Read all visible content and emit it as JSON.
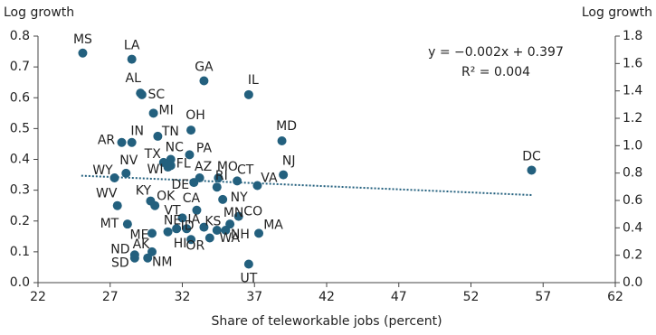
{
  "chart_data": {
    "type": "scatter",
    "y_label": "Log growth",
    "y2_label": "Log growth",
    "x_label": "Share of teleworkable jobs (percent)",
    "annotations": [
      "y = −0.002x + 0.397",
      "R² = 0.004"
    ],
    "color": "#23607e",
    "labels": [
      "MS",
      "LA",
      "AL",
      "SC",
      "GA",
      "IL",
      "MI",
      "OH",
      "TN",
      "AR",
      "IN",
      "MD",
      "NC",
      "PA",
      "TX",
      "FL",
      "WI",
      "NV",
      "WY",
      "DE",
      "AZ",
      "MO",
      "CT",
      "RI",
      "VA",
      "NJ",
      "DC",
      "KY",
      "OK",
      "WV",
      "CA",
      "VT",
      "NY",
      "CO",
      "MN",
      "MT",
      "ME",
      "NE",
      "IA",
      "KS",
      "NH",
      "MA",
      "AK",
      "ID",
      "HI",
      "OR",
      "WA",
      "ND",
      "SD",
      "NM",
      "UT"
    ],
    "x": [
      25.1,
      28.5,
      29.1,
      29.2,
      33.5,
      36.6,
      30.0,
      32.6,
      30.3,
      27.8,
      28.5,
      38.9,
      31.2,
      32.5,
      30.7,
      31.2,
      31.0,
      28.1,
      27.3,
      32.8,
      33.2,
      34.5,
      35.8,
      34.4,
      37.2,
      39.0,
      56.2,
      29.8,
      30.1,
      27.5,
      33.0,
      32.0,
      34.8,
      35.9,
      35.3,
      28.2,
      29.9,
      31.0,
      32.3,
      33.5,
      35.0,
      37.3,
      29.9,
      31.6,
      32.6,
      33.9,
      34.4,
      28.7,
      28.7,
      29.6,
      36.6
    ],
    "values": [
      0.745,
      0.725,
      0.615,
      0.61,
      0.655,
      0.61,
      0.55,
      0.495,
      0.475,
      0.455,
      0.455,
      0.46,
      0.4,
      0.415,
      0.39,
      0.38,
      0.375,
      0.355,
      0.34,
      0.325,
      0.34,
      0.34,
      0.33,
      0.31,
      0.315,
      0.35,
      0.365,
      0.265,
      0.25,
      0.25,
      0.235,
      0.21,
      0.27,
      0.215,
      0.19,
      0.19,
      0.16,
      0.165,
      0.175,
      0.18,
      0.17,
      0.16,
      0.1,
      0.175,
      0.14,
      0.145,
      0.17,
      0.09,
      0.08,
      0.08,
      0.06
    ],
    "trendline": {
      "x": [
        25,
        56.3
      ],
      "y": [
        0.347,
        0.284
      ]
    },
    "xlim": [
      22,
      62
    ],
    "xticks": [
      22,
      27,
      32,
      37,
      42,
      47,
      52,
      57,
      62
    ],
    "ylim": [
      0,
      0.8
    ],
    "yticks": [
      {
        "value": 0,
        "label": "0.0"
      },
      0.1,
      0.2,
      0.3,
      0.4,
      0.5,
      0.6,
      0.7,
      0.8
    ],
    "y2lim": [
      0,
      1.8
    ],
    "y2ticks": [
      {
        "value": 0,
        "label": "0.0"
      },
      0.2,
      0.4,
      0.6,
      0.8,
      {
        "value": 1,
        "label": "1.0"
      },
      1.2,
      1.4,
      1.6,
      1.8
    ]
  }
}
